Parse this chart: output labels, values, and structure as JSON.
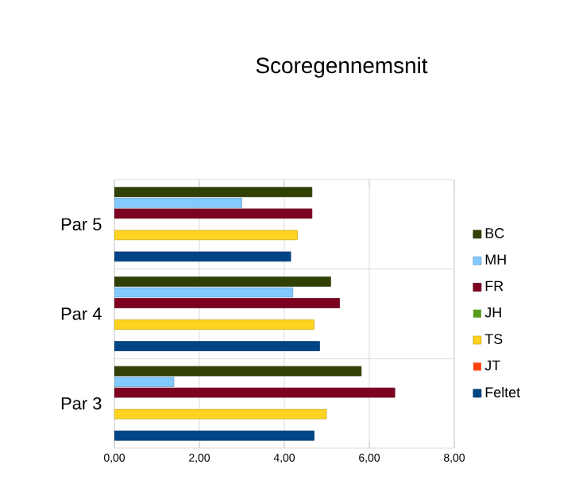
{
  "chart_data": {
    "type": "bar",
    "orientation": "horizontal",
    "title": "Scoregennemsnit",
    "categories": [
      "Par 5",
      "Par 4",
      "Par 3"
    ],
    "series": [
      {
        "name": "BC",
        "color": "#314004",
        "values": [
          4.65,
          5.09,
          5.81
        ]
      },
      {
        "name": "MH",
        "color": "#83caff",
        "values": [
          3.0,
          4.2,
          1.4
        ]
      },
      {
        "name": "FR",
        "color": "#7e0021",
        "values": [
          4.65,
          5.3,
          6.6
        ]
      },
      {
        "name": "JH",
        "color": "#579d1c",
        "values": [
          null,
          null,
          null
        ]
      },
      {
        "name": "TS",
        "color": "#ffd320",
        "values": [
          4.31,
          4.7,
          4.99
        ]
      },
      {
        "name": "JT",
        "color": "#ff420e",
        "values": [
          null,
          null,
          null
        ]
      },
      {
        "name": "Feltet",
        "color": "#004586",
        "values": [
          4.15,
          4.83,
          4.7
        ]
      }
    ],
    "xlim": [
      0,
      8
    ],
    "xticks": [
      {
        "value": 0,
        "label": "0,00"
      },
      {
        "value": 2,
        "label": "2,00"
      },
      {
        "value": 4,
        "label": "4,00"
      },
      {
        "value": 6,
        "label": "6,00"
      },
      {
        "value": 8,
        "label": "8,00"
      }
    ],
    "grid": "x",
    "legend": "right"
  }
}
